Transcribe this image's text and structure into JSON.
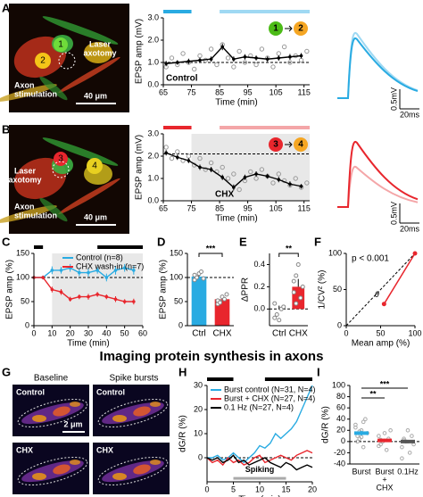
{
  "figure": {
    "title": "Imaging protein synthesis in axons",
    "panel_letters": [
      "A",
      "B",
      "C",
      "D",
      "E",
      "F",
      "G",
      "H",
      "I"
    ],
    "panel_a": {
      "neurons": [
        "1",
        "2"
      ],
      "laser": [
        "Laser",
        "axotomy"
      ],
      "stimulation": [
        "Axon",
        "stimulation"
      ],
      "scale": "40 μm"
    },
    "panel_b": {
      "neurons": [
        "3",
        "4"
      ],
      "laser": [
        "Laser",
        "axotomy"
      ],
      "stimulation": [
        "Axon",
        "stimulation"
      ],
      "scale": "40 μm"
    },
    "traces_a": {
      "voltage": "0.5mV",
      "time": "20ms"
    },
    "traces_b": {
      "voltage": "0.5mV",
      "time": "20ms"
    },
    "panel_g": {
      "columns": [
        "Baseline",
        "Spike bursts"
      ],
      "tiles": [
        "Control",
        "Control",
        "CHX",
        "CHX"
      ],
      "scale": "2 μm"
    }
  },
  "chart_data": [
    {
      "type": "line",
      "ylabel": "EPSP amp (mV)",
      "xlabel": "Time (min)",
      "annotation": "Control",
      "badges": [
        "1",
        "2"
      ],
      "xlim": [
        65,
        117
      ],
      "xticks": [
        65,
        75,
        85,
        95,
        105,
        115
      ],
      "ylim": [
        0,
        3
      ],
      "yticks": [
        {
          "value": 0,
          "label": "0.0"
        },
        {
          "value": 1,
          "label": "1.0"
        },
        {
          "value": 2,
          "label": "2.0"
        },
        {
          "value": 3,
          "label": "3.0"
        }
      ],
      "baseline": 1,
      "periods": [
        {
          "start": 65,
          "end": 75,
          "color": "#29abe2"
        },
        {
          "start": 85,
          "end": 117,
          "color": "#9fd9f3"
        }
      ],
      "x": [
        66,
        70,
        74,
        78,
        82,
        86,
        90,
        94,
        98,
        102,
        106,
        110,
        114
      ],
      "series": [
        {
          "color": "#000000",
          "values": [
            0.95,
            1.0,
            1.05,
            1.1,
            1.15,
            1.7,
            1.15,
            1.25,
            1.2,
            1.15,
            1.2,
            1.25,
            1.3
          ],
          "errors": [
            0.12,
            0.1,
            0.12,
            0.11,
            0.12,
            0.15,
            0.12,
            0.12,
            0.11,
            0.12,
            0.12,
            0.13,
            0.12
          ]
        }
      ],
      "points": {
        "x": [
          66,
          68,
          70,
          72,
          74,
          76,
          78,
          80,
          82,
          84,
          86,
          88,
          90,
          92,
          94,
          96,
          98,
          100,
          102,
          104,
          106,
          108,
          110,
          112,
          114,
          116
        ],
        "values": [
          0.8,
          1.2,
          0.9,
          1.4,
          1.0,
          0.7,
          1.3,
          1.1,
          1.6,
          0.9,
          1.8,
          1.2,
          0.8,
          1.5,
          1.0,
          1.3,
          0.9,
          1.6,
          1.2,
          0.8,
          1.4,
          1.7,
          1.0,
          1.3,
          1.1,
          1.5
        ]
      }
    },
    {
      "type": "line",
      "ylabel": "EPSP amp (mV)",
      "xlabel": "Time (min)",
      "annotation": "CHX",
      "badges": [
        "3",
        "4"
      ],
      "xlim": [
        65,
        117
      ],
      "xticks": [
        65,
        75,
        85,
        95,
        105,
        115
      ],
      "ylim": [
        0,
        3
      ],
      "yticks": [
        {
          "value": 0,
          "label": "0.0"
        },
        {
          "value": 1,
          "label": "1.0"
        },
        {
          "value": 2,
          "label": "2.0"
        },
        {
          "value": 3,
          "label": "3.0"
        }
      ],
      "baseline": 2.1,
      "shade": [
        75,
        117
      ],
      "periods": [
        {
          "start": 65,
          "end": 75,
          "color": "#e8262d"
        },
        {
          "start": 85,
          "end": 117,
          "color": "#f4a6a8"
        }
      ],
      "x": [
        66,
        70,
        74,
        78,
        82,
        86,
        90,
        94,
        98,
        102,
        106,
        110,
        114
      ],
      "series": [
        {
          "color": "#000000",
          "values": [
            2.15,
            1.95,
            1.8,
            1.5,
            1.4,
            1.05,
            0.6,
            1.05,
            1.2,
            1.1,
            0.95,
            0.75,
            0.65
          ],
          "errors": [
            0.12,
            0.12,
            0.11,
            0.12,
            0.12,
            0.12,
            0.13,
            0.12,
            0.12,
            0.11,
            0.12,
            0.12,
            0.1
          ]
        }
      ],
      "points": {
        "x": [
          66,
          68,
          70,
          72,
          74,
          76,
          78,
          80,
          82,
          84,
          86,
          88,
          90,
          92,
          94,
          96,
          98,
          100,
          102,
          104,
          106,
          108,
          110,
          112,
          114,
          116
        ],
        "values": [
          2.4,
          1.9,
          2.2,
          1.8,
          2.0,
          1.6,
          1.9,
          1.4,
          1.7,
          1.3,
          1.5,
          1.0,
          1.2,
          0.5,
          0.9,
          1.3,
          1.0,
          1.4,
          1.1,
          0.8,
          1.2,
          0.9,
          0.7,
          1.0,
          0.6,
          0.8
        ]
      }
    },
    {
      "type": "line",
      "ylabel": "EPSP amp (%)",
      "xlabel": "Time (min)",
      "xlim": [
        0,
        60
      ],
      "xticks": [
        0,
        10,
        20,
        30,
        40,
        50,
        60
      ],
      "ylim": [
        0,
        150
      ],
      "yticks": [
        0,
        50,
        100,
        150
      ],
      "baseline": 100,
      "shade": [
        10,
        60
      ],
      "periods": [
        {
          "start": 0,
          "end": 5,
          "color": "#000000"
        },
        {
          "start": 35,
          "end": 60,
          "color": "#000000"
        }
      ],
      "x": [
        0,
        5,
        10,
        15,
        20,
        25,
        30,
        35,
        40,
        45,
        50,
        55
      ],
      "series": [
        {
          "name": "Control (n=8)",
          "color": "#29abe2",
          "values": [
            100,
            100,
            115,
            115,
            120,
            110,
            110,
            115,
            100,
            115,
            120,
            115
          ],
          "errors": [
            3,
            4,
            8,
            7,
            8,
            7,
            8,
            7,
            8,
            9,
            8,
            9
          ]
        },
        {
          "name": "CHX wash-in (n=7)",
          "color": "#e8262d",
          "values": [
            100,
            100,
            75,
            70,
            55,
            60,
            60,
            65,
            60,
            55,
            50,
            50
          ],
          "errors": [
            3,
            4,
            6,
            6,
            5,
            5,
            6,
            5,
            5,
            6,
            5,
            6
          ]
        }
      ]
    },
    {
      "type": "bar",
      "ylabel": "EPSP amp (%)",
      "categories": [
        "Ctrl",
        "CHX"
      ],
      "values": [
        102,
        55
      ],
      "errors": [
        4,
        5
      ],
      "colors": [
        "#29abe2",
        "#e8262d"
      ],
      "ylim": [
        0,
        150
      ],
      "yticks": [
        0,
        50,
        100,
        150
      ],
      "baseline": 100,
      "significance": "***",
      "points": [
        [
          95,
          100,
          108,
          112,
          98,
          105
        ],
        [
          45,
          50,
          60,
          55,
          65,
          52,
          48
        ]
      ]
    },
    {
      "type": "bar",
      "ylabel": "ΔPPR",
      "categories": [
        "Ctrl",
        "CHX"
      ],
      "values": [
        0.0,
        0.2
      ],
      "errors": [
        0.03,
        0.07
      ],
      "colors": [
        "#29abe2",
        "#e8262d"
      ],
      "ylim": [
        -0.15,
        0.5
      ],
      "yticks": [
        {
          "value": 0,
          "label": "0.0"
        },
        {
          "value": 0.2,
          "label": "0.2"
        },
        {
          "value": 0.4,
          "label": "0.4"
        }
      ],
      "baseline": 0,
      "significance": "**",
      "points": [
        [
          0.05,
          -0.05,
          -0.1,
          0.0,
          0.02,
          -0.08
        ],
        [
          0.15,
          0.3,
          0.4,
          0.1,
          0.2,
          0.25,
          0.05
        ]
      ]
    },
    {
      "type": "scatter",
      "ylabel": "1/CV² (%)",
      "xlabel": "Mean amp (%)",
      "annotation": "p < 0.001",
      "angle_label": "θ",
      "xlim": [
        0,
        100
      ],
      "xticks": [
        0,
        50,
        100
      ],
      "ylim": [
        0,
        100
      ],
      "yticks": [
        0,
        50,
        100
      ],
      "x": [
        100,
        55
      ],
      "series": [
        {
          "color": "#e8262d",
          "values": [
            100,
            30
          ]
        }
      ]
    },
    {
      "type": "line",
      "ylabel": "dG/R (%)",
      "xlabel": "Time (min)",
      "xlim": [
        0,
        20
      ],
      "xticks": [
        0,
        5,
        10,
        15,
        20
      ],
      "ylim": [
        -10,
        30
      ],
      "yticks": [
        0,
        10,
        20,
        30
      ],
      "baseline": 0,
      "periods": [
        {
          "start": 0,
          "end": 5,
          "color": "#000000"
        },
        {
          "start": 11,
          "end": 20,
          "color": "#000000"
        }
      ],
      "spiking": {
        "label": "Spiking",
        "start": 5,
        "end": 15
      },
      "x": [
        0,
        1,
        2,
        3,
        4,
        5,
        6,
        7,
        8,
        9,
        10,
        11,
        12,
        13,
        14,
        15,
        16,
        17,
        18,
        19,
        20
      ],
      "series": [
        {
          "name": "Burst control (N=31, N=4)",
          "color": "#29abe2",
          "values": [
            0,
            0,
            1,
            -1,
            0,
            2,
            0,
            -2,
            0,
            2,
            5,
            4,
            6,
            10,
            8,
            10,
            12,
            15,
            20,
            25,
            30
          ]
        },
        {
          "name": "Burst + CHX (N=27, N=4)",
          "color": "#e8262d",
          "values": [
            0,
            -2,
            -1,
            -3,
            0,
            -2,
            -1,
            -3,
            -2,
            0,
            1,
            -2,
            -1,
            0,
            1,
            0,
            -1,
            1,
            2,
            3,
            2
          ]
        },
        {
          "name": "0.1 Hz (N=27, N=4)",
          "color": "#000000",
          "values": [
            0,
            -1,
            0,
            -2,
            -1,
            1,
            -2,
            -1,
            -3,
            -2,
            -1,
            0,
            -2,
            -3,
            -4,
            -2,
            -3,
            -5,
            -4,
            -3,
            -4
          ]
        }
      ]
    },
    {
      "type": "strip",
      "ylabel": "dG/R (%)",
      "categories": [
        [
          "Burst"
        ],
        [
          "Burst",
          "+",
          "CHX"
        ],
        [
          "0.1Hz"
        ]
      ],
      "values": [
        15,
        2,
        0
      ],
      "errors": [
        4,
        3,
        3
      ],
      "colors": [
        "#29abe2",
        "#e8262d",
        "#555555"
      ],
      "ylim": [
        -40,
        100
      ],
      "yticks": [
        -40,
        -20,
        0,
        20,
        40,
        60,
        80,
        100
      ],
      "baseline": 0,
      "significance": [
        "**",
        "***"
      ],
      "points": [
        [
          30,
          10,
          5,
          20,
          -10,
          40,
          15,
          25,
          0,
          18,
          8,
          35
        ],
        [
          10,
          -5,
          0,
          15,
          -15,
          5,
          20,
          -8,
          3
        ],
        [
          -10,
          5,
          0,
          20,
          -20,
          10,
          -5,
          -30,
          2
        ]
      ]
    }
  ]
}
